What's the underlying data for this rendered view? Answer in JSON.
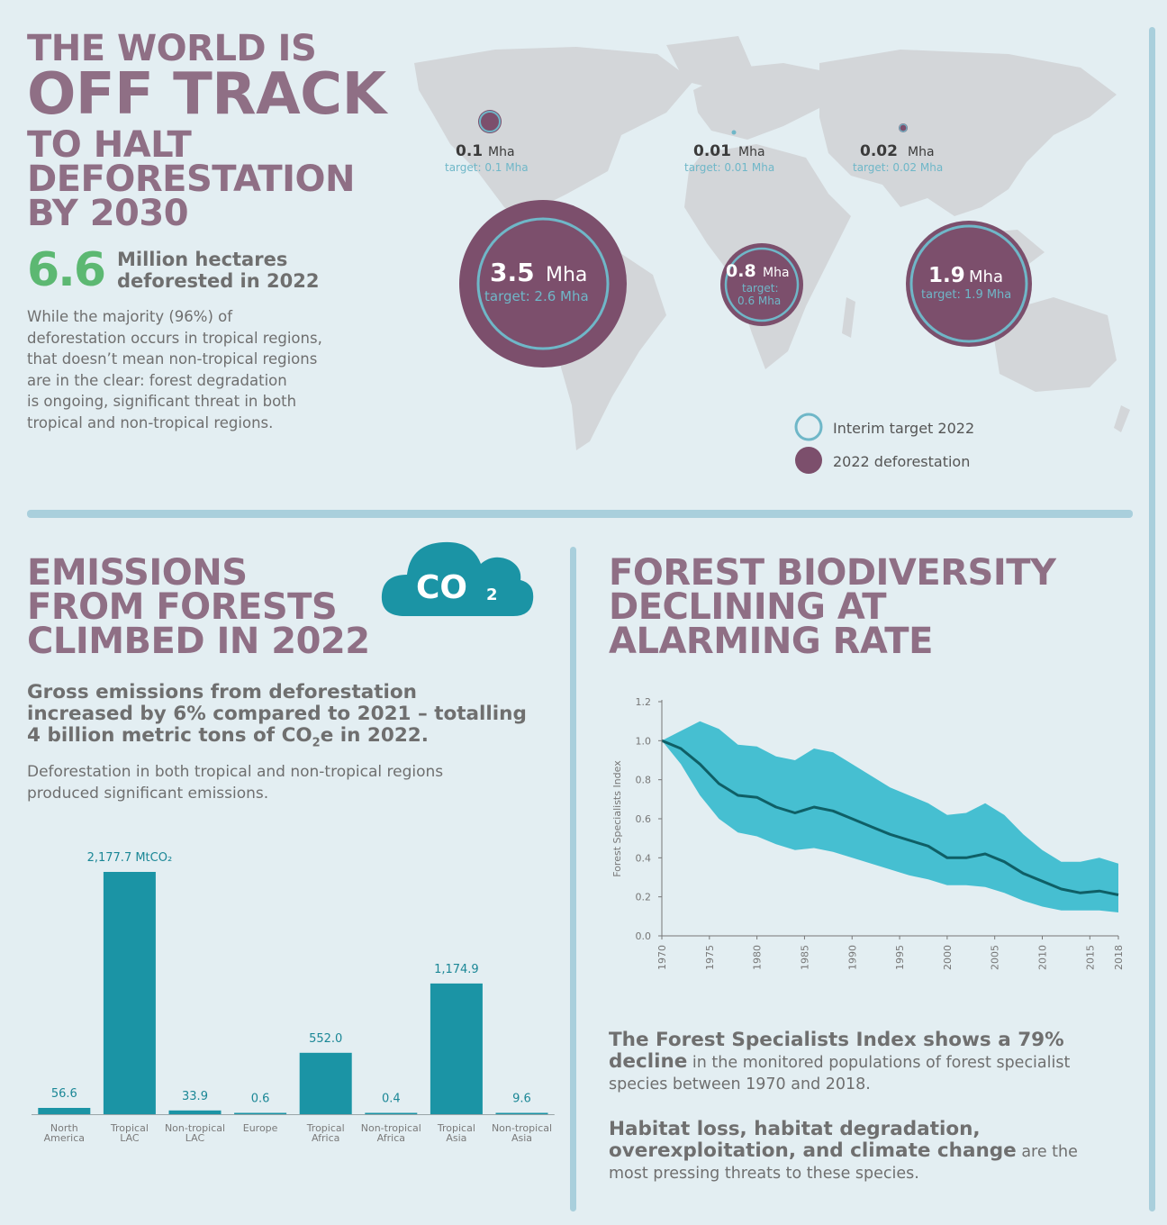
{
  "hero": {
    "line1": "THE WORLD IS",
    "line2": "OFF TRACK",
    "line3": "TO HALT",
    "line4": "DEFORESTATION",
    "line5": "BY 2030",
    "stat_value": "6.6",
    "stat_label_1": "Million hectares",
    "stat_label_2": "deforested in 2022",
    "paragraph": [
      "While the majority (96%) of",
      "deforestation occurs in tropical regions,",
      "that doesn’t mean non-tropical regions",
      "are in the clear: forest degradation",
      "is ongoing, significant threat in both",
      "tropical and non-tropical regions."
    ]
  },
  "map": {
    "regions": [
      {
        "id": "north-america",
        "value": "0.1",
        "unit": "Mha",
        "target": "target: 0.1 Mha",
        "deforestation_mha": 0.1,
        "target_mha": 0.1
      },
      {
        "id": "europe",
        "value": "0.01",
        "unit": "Mha",
        "target": "target: 0.01 Mha",
        "deforestation_mha": 0.01,
        "target_mha": 0.01
      },
      {
        "id": "asia",
        "value": "0.02",
        "unit": "Mha",
        "target": "target: 0.02 Mha",
        "deforestation_mha": 0.02,
        "target_mha": 0.02
      },
      {
        "id": "tropical-lac",
        "value": "3.5",
        "unit": "Mha",
        "target": "target: 2.6 Mha",
        "deforestation_mha": 3.5,
        "target_mha": 2.6
      },
      {
        "id": "tropical-africa",
        "value": "0.8",
        "unit": "Mha",
        "target_1": "target:",
        "target_2": "0.6 Mha",
        "deforestation_mha": 0.8,
        "target_mha": 0.6
      },
      {
        "id": "tropical-asia",
        "value": "1.9",
        "unit": "Mha",
        "target": "target: 1.9 Mha",
        "deforestation_mha": 1.9,
        "target_mha": 1.9
      }
    ],
    "legend": {
      "target": "Interim target 2022",
      "deforestation": "2022 deforestation"
    },
    "colors": {
      "land": "#d3d6d9",
      "bubble": "#7c4f6c",
      "ring": "#6fb7c8"
    }
  },
  "emissions": {
    "heading_1": "EMISSIONS",
    "heading_2": "FROM FORESTS",
    "heading_3": "CLIMBED IN 2022",
    "cloud_text": "CO",
    "cloud_sub": "2",
    "bold_1": "Gross emissions from deforestation",
    "bold_2": "increased by 6% compared to 2021 – totalling",
    "bold_3a": "4 billion metric tons of CO",
    "bold_3sub": "2",
    "bold_3b": "e in 2022.",
    "note_1": "Deforestation in both tropical and non-tropical regions",
    "note_2": "produced significant emissions."
  },
  "biodiversity": {
    "heading_1": "FOREST BIODIVERSITY",
    "heading_2": "DECLINING AT",
    "heading_3": "ALARMING RATE",
    "p1_bold_1": "The Forest Specialists Index shows a 79%",
    "p1_bold_2": "decline",
    "p1_rest_1": " in the monitored populations of forest specialist",
    "p1_rest_2": "species between 1970 and 2018.",
    "p2_bold_1": "Habitat loss, habitat degradation,",
    "p2_bold_2": "overexploitation, and climate change",
    "p2_rest_1": " are the",
    "p2_rest_2": "most pressing threats to these species."
  },
  "chart_data": [
    {
      "type": "bar",
      "title": "",
      "categories": [
        [
          "North",
          "America"
        ],
        [
          "Tropical",
          "LAC"
        ],
        [
          "Non-tropical",
          "LAC"
        ],
        [
          "Europe"
        ],
        [
          "Tropical",
          "Africa"
        ],
        [
          "Non-tropical",
          "Africa"
        ],
        [
          "Tropical",
          "Asia"
        ],
        [
          "Non-tropical",
          "Asia"
        ]
      ],
      "values": [
        56.6,
        2177.7,
        33.9,
        0.6,
        552.0,
        0.4,
        1174.9,
        9.6
      ],
      "value_labels": [
        "56.6",
        "2,177.7 MtCO₂",
        "33.9",
        "0.6",
        "552.0",
        "0.4",
        "1,174.9",
        "9.6"
      ],
      "unit": "MtCO₂",
      "ylim": [
        0,
        2177.7
      ],
      "color": "#1b94a5",
      "grid": false
    },
    {
      "type": "line",
      "ylabel": "Forest Specialists Index",
      "xlim": [
        1970,
        2018
      ],
      "ylim": [
        0,
        1.2
      ],
      "yticks": [
        "0.0",
        "0.2",
        "0.4",
        "0.6",
        "0.8",
        "1.0",
        "1.2"
      ],
      "yticks_values": [
        0,
        0.2,
        0.4,
        0.6,
        0.8,
        1.0,
        1.2
      ],
      "xticks": [
        "1970",
        "1975",
        "1980",
        "1985",
        "1990",
        "1995",
        "2000",
        "2005",
        "2010",
        "2015",
        "2018"
      ],
      "xticks_values": [
        1970,
        1975,
        1980,
        1985,
        1990,
        1995,
        2000,
        2005,
        2010,
        2015,
        2018
      ],
      "x": [
        1970,
        1972,
        1974,
        1976,
        1978,
        1980,
        1982,
        1984,
        1986,
        1988,
        1990,
        1992,
        1994,
        1996,
        1998,
        2000,
        2002,
        2004,
        2006,
        2008,
        2010,
        2012,
        2014,
        2016,
        2018
      ],
      "series": [
        {
          "values": [
            1.0,
            0.96,
            0.88,
            0.78,
            0.72,
            0.71,
            0.66,
            0.63,
            0.66,
            0.64,
            0.6,
            0.56,
            0.52,
            0.49,
            0.46,
            0.4,
            0.4,
            0.42,
            0.38,
            0.32,
            0.28,
            0.24,
            0.22,
            0.23,
            0.21
          ],
          "lower": [
            1.0,
            0.88,
            0.72,
            0.6,
            0.53,
            0.51,
            0.47,
            0.44,
            0.45,
            0.43,
            0.4,
            0.37,
            0.34,
            0.31,
            0.29,
            0.26,
            0.26,
            0.25,
            0.22,
            0.18,
            0.15,
            0.13,
            0.13,
            0.13,
            0.12
          ],
          "upper": [
            1.0,
            1.05,
            1.1,
            1.06,
            0.98,
            0.97,
            0.92,
            0.9,
            0.96,
            0.94,
            0.88,
            0.82,
            0.76,
            0.72,
            0.68,
            0.62,
            0.63,
            0.68,
            0.62,
            0.52,
            0.44,
            0.38,
            0.38,
            0.4,
            0.37
          ]
        }
      ],
      "line_color": "#0f5f66",
      "band_color": "#46bfd1",
      "grid": false
    }
  ]
}
